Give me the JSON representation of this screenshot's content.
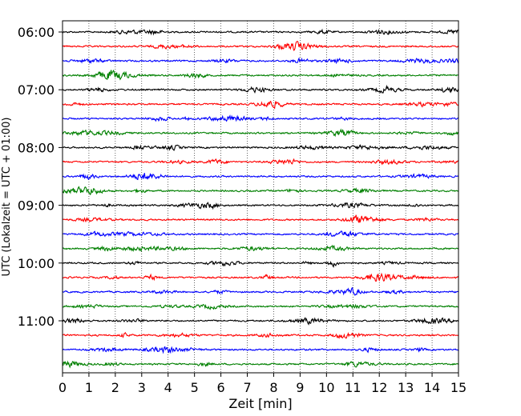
{
  "chart_data": {
    "type": "line",
    "title": "",
    "xlabel": "Zeit  [min]",
    "ylabel": "UTC (Lokalzeit = UTC + 01:00)",
    "xlim": [
      0,
      15
    ],
    "x_ticks": [
      "0",
      "1",
      "2",
      "3",
      "4",
      "5",
      "6",
      "7",
      "8",
      "9",
      "10",
      "11",
      "12",
      "13",
      "14",
      "15"
    ],
    "y_tick_labels": [
      "06:00",
      "07:00",
      "08:00",
      "09:00",
      "10:00",
      "11:00"
    ],
    "rows_per_hour": 4,
    "trace_colors": [
      "#000000",
      "#ff0000",
      "#0000ff",
      "#008000"
    ],
    "rows": [
      {
        "start": "06:00"
      },
      {
        "start": "06:15"
      },
      {
        "start": "06:30"
      },
      {
        "start": "06:45"
      },
      {
        "start": "07:00"
      },
      {
        "start": "07:15"
      },
      {
        "start": "07:30"
      },
      {
        "start": "07:45"
      },
      {
        "start": "08:00"
      },
      {
        "start": "08:15"
      },
      {
        "start": "08:30"
      },
      {
        "start": "08:45"
      },
      {
        "start": "09:00"
      },
      {
        "start": "09:15"
      },
      {
        "start": "09:30"
      },
      {
        "start": "09:45"
      },
      {
        "start": "10:00"
      },
      {
        "start": "10:15"
      },
      {
        "start": "10:30"
      },
      {
        "start": "10:45"
      },
      {
        "start": "11:00"
      },
      {
        "start": "11:15"
      },
      {
        "start": "11:30"
      },
      {
        "start": "11:45"
      }
    ],
    "grid": "vertical dotted at each minute"
  }
}
